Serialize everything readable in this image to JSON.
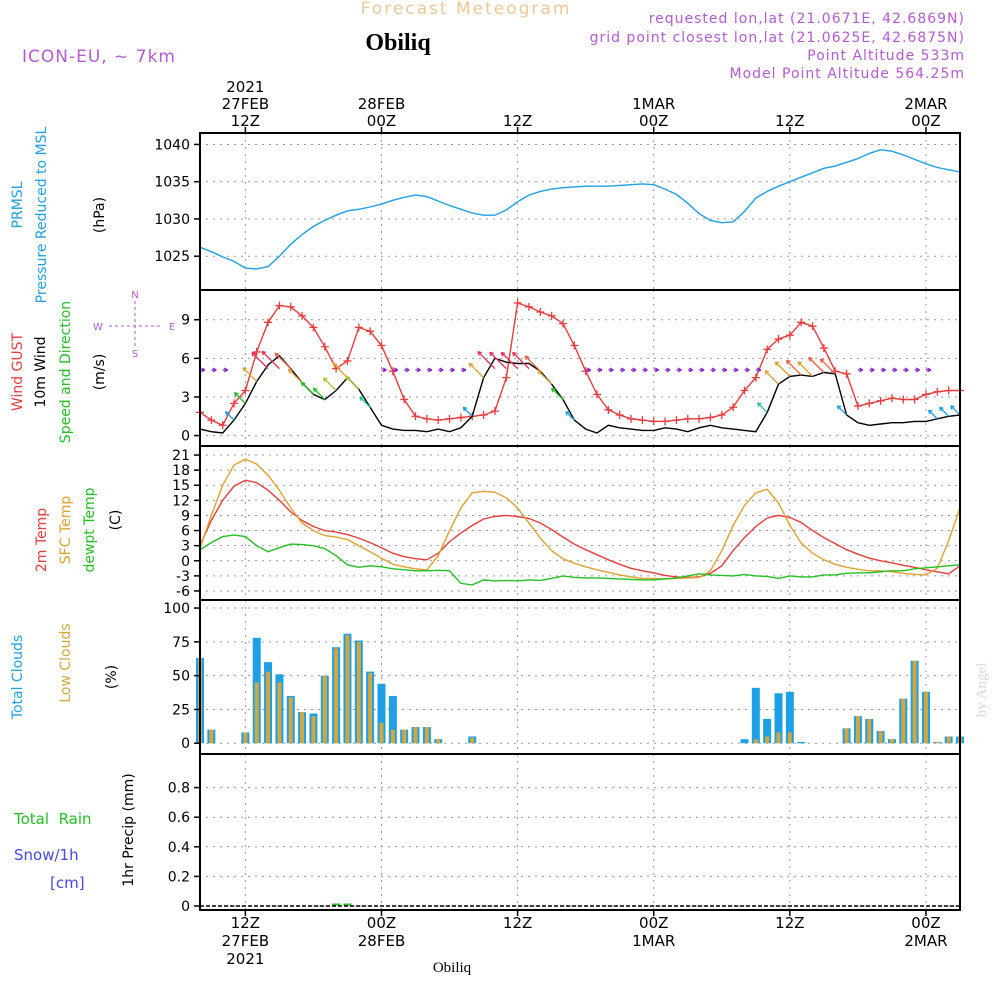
{
  "header": {
    "product_title": "Forecast Meteogram",
    "location": "Obiliq",
    "model": "ICON-EU, ~ 7km",
    "requested": "requested lon,lat (21.0671E, 42.6869N)",
    "grid_point": "grid point closest lon,lat (21.0625E, 42.6875N)",
    "point_altitude": "Point Altitude 533m",
    "model_altitude": "Model Point Altitude 564.25m",
    "footer_location": "Obiliq",
    "credit": "by Angel"
  },
  "colors": {
    "pressure": "#1ea0e6",
    "gust": "#e83c3c",
    "wind": "#000000",
    "temp2m": "#e83c3c",
    "sfc": "#e0a030",
    "dew": "#22c022",
    "total_clouds": "#1ea0e6",
    "low_clouds": "#d4a73c",
    "purple": "#b45ad2",
    "rain": "#22c022",
    "snow": "#4646e6",
    "title": "#f0c896"
  },
  "time_axis": {
    "hour_range": [
      0,
      67
    ],
    "major_ticks": [
      {
        "hour": 4,
        "label": "12Z",
        "date": "27FEB",
        "year": "2021"
      },
      {
        "hour": 16,
        "label": "00Z",
        "date": "28FEB",
        "year": ""
      },
      {
        "hour": 28,
        "label": "12Z",
        "date": "",
        "year": ""
      },
      {
        "hour": 40,
        "label": "00Z",
        "date": "1MAR",
        "year": ""
      },
      {
        "hour": 52,
        "label": "12Z",
        "date": "",
        "year": ""
      },
      {
        "hour": 64,
        "label": "00Z",
        "date": "2MAR",
        "year": ""
      }
    ]
  },
  "chart_data": [
    {
      "type": "line",
      "name": "pressure",
      "ylabel_lines": [
        "PRMSL",
        "Pressure Reduced to MSL"
      ],
      "units": "(hPa)",
      "ylim": [
        1021,
        1041
      ],
      "yticks": [
        1025,
        1030,
        1035,
        1040
      ],
      "series": [
        {
          "name": "PRMSL",
          "color_key": "pressure",
          "x": [
            0,
            1,
            2,
            3,
            4,
            5,
            6,
            7,
            8,
            9,
            10,
            11,
            12,
            13,
            14,
            15,
            16,
            17,
            18,
            19,
            20,
            21,
            22,
            23,
            24,
            25,
            26,
            27,
            28,
            29,
            30,
            31,
            32,
            33,
            34,
            35,
            36,
            37,
            38,
            39,
            40,
            41,
            42,
            43,
            44,
            45,
            46,
            47,
            48,
            49,
            50,
            51,
            52,
            53,
            54,
            55,
            56,
            57,
            58,
            59,
            60,
            61,
            62,
            63,
            64,
            65,
            66,
            67
          ],
          "values": [
            1026.2,
            1025.6,
            1024.9,
            1024.3,
            1023.4,
            1023.3,
            1023.6,
            1025.0,
            1026.6,
            1027.9,
            1029.0,
            1029.8,
            1030.5,
            1031.1,
            1031.3,
            1031.6,
            1032.0,
            1032.5,
            1032.9,
            1033.2,
            1033.0,
            1032.4,
            1031.8,
            1031.3,
            1030.8,
            1030.5,
            1030.5,
            1031.2,
            1032.3,
            1033.2,
            1033.7,
            1034.0,
            1034.2,
            1034.3,
            1034.4,
            1034.4,
            1034.4,
            1034.5,
            1034.6,
            1034.7,
            1034.6,
            1034.0,
            1033.3,
            1032.1,
            1030.7,
            1029.8,
            1029.5,
            1029.6,
            1031.0,
            1032.8,
            1033.7,
            1034.4,
            1035.0,
            1035.6,
            1036.2,
            1036.8,
            1037.1,
            1037.6,
            1038.1,
            1038.8,
            1039.3,
            1039.1,
            1038.6,
            1038.0,
            1037.4,
            1036.9,
            1036.6,
            1036.3
          ]
        }
      ]
    },
    {
      "type": "line",
      "name": "wind",
      "ylabel_lines": [
        "Wind GUST",
        "10m Wind",
        "Speed and Direction"
      ],
      "units": "(m/s)",
      "compass": {
        "n": "N",
        "s": "S",
        "e": "E",
        "w": "W"
      },
      "ylim": [
        -0.5,
        11
      ],
      "yticks": [
        0,
        3,
        6,
        9
      ],
      "x": [
        0,
        1,
        2,
        3,
        4,
        5,
        6,
        7,
        8,
        9,
        10,
        11,
        12,
        13,
        14,
        15,
        16,
        17,
        18,
        19,
        20,
        21,
        22,
        23,
        24,
        25,
        26,
        27,
        28,
        29,
        30,
        31,
        32,
        33,
        34,
        35,
        36,
        37,
        38,
        39,
        40,
        41,
        42,
        43,
        44,
        45,
        46,
        47,
        48,
        49,
        50,
        51,
        52,
        53,
        54,
        55,
        56,
        57,
        58,
        59,
        60,
        61,
        62,
        63,
        64,
        65,
        66,
        67
      ],
      "series": [
        {
          "name": "Wind GUST",
          "color_key": "gust",
          "values": [
            1.8,
            1.2,
            0.8,
            2.5,
            3.5,
            6.5,
            8.8,
            10.1,
            10.0,
            9.3,
            8.4,
            6.9,
            5.2,
            5.8,
            8.4,
            8.1,
            7.0,
            5.0,
            2.8,
            1.5,
            1.3,
            1.2,
            1.3,
            1.4,
            1.5,
            1.6,
            1.9,
            4.5,
            10.3,
            10.0,
            9.6,
            9.3,
            8.7,
            7.0,
            5.0,
            3.2,
            2.0,
            1.6,
            1.3,
            1.2,
            1.1,
            1.1,
            1.2,
            1.3,
            1.3,
            1.4,
            1.6,
            2.2,
            3.5,
            4.5,
            6.7,
            7.5,
            7.8,
            8.8,
            8.5,
            6.8,
            5.0,
            4.8,
            2.3,
            2.5,
            2.7,
            2.9,
            2.8,
            2.8,
            3.2,
            3.4,
            3.5,
            3.5
          ]
        },
        {
          "name": "10m Wind",
          "color_key": "wind",
          "values": [
            0.5,
            0.3,
            0.2,
            1.2,
            2.5,
            4.2,
            5.5,
            6.2,
            5.2,
            4.1,
            3.2,
            2.8,
            3.5,
            4.5,
            3.6,
            2.2,
            0.8,
            0.5,
            0.4,
            0.4,
            0.3,
            0.5,
            0.3,
            0.6,
            1.5,
            4.5,
            6.0,
            5.7,
            5.6,
            5.6,
            5.0,
            4.0,
            2.8,
            1.2,
            0.5,
            0.2,
            0.8,
            0.6,
            0.5,
            0.4,
            0.4,
            0.6,
            0.5,
            0.3,
            0.6,
            0.8,
            0.6,
            0.5,
            0.4,
            0.3,
            1.8,
            4.0,
            4.6,
            4.7,
            4.6,
            4.9,
            4.8,
            1.6,
            1.0,
            0.8,
            0.9,
            1.0,
            1.0,
            1.1,
            1.1,
            1.3,
            1.5,
            1.6
          ]
        }
      ]
    },
    {
      "type": "line",
      "name": "temperature",
      "ylabel_lines": [
        "2m Temp",
        "SFC Temp",
        "dewpt Temp"
      ],
      "units": "(C)",
      "ylim": [
        -7,
        22
      ],
      "yticks": [
        -6,
        -3,
        0,
        3,
        6,
        9,
        12,
        15,
        18,
        21
      ],
      "x": [
        0,
        1,
        2,
        3,
        4,
        5,
        6,
        7,
        8,
        9,
        10,
        11,
        12,
        13,
        14,
        15,
        16,
        17,
        18,
        19,
        20,
        21,
        22,
        23,
        24,
        25,
        26,
        27,
        28,
        29,
        30,
        31,
        32,
        33,
        34,
        35,
        36,
        37,
        38,
        39,
        40,
        41,
        42,
        43,
        44,
        45,
        46,
        47,
        48,
        49,
        50,
        51,
        52,
        53,
        54,
        55,
        56,
        57,
        58,
        59,
        60,
        61,
        62,
        63,
        64,
        65,
        66,
        67
      ],
      "series": [
        {
          "name": "2m Temp",
          "color_key": "temp2m",
          "values": [
            3.0,
            8.0,
            12.0,
            14.8,
            16.0,
            15.5,
            14.0,
            12.0,
            9.7,
            8.0,
            6.8,
            6.0,
            5.7,
            5.2,
            4.5,
            3.6,
            2.6,
            1.5,
            0.8,
            0.4,
            0.2,
            1.5,
            3.8,
            5.5,
            7.0,
            8.3,
            8.8,
            9.0,
            8.8,
            8.4,
            7.5,
            6.2,
            4.7,
            3.3,
            2.2,
            1.2,
            0.2,
            -0.7,
            -1.5,
            -2.0,
            -2.4,
            -2.9,
            -3.2,
            -3.3,
            -3.2,
            -2.5,
            -1.0,
            2.0,
            4.6,
            6.8,
            8.5,
            9.0,
            8.6,
            7.6,
            6.0,
            4.6,
            3.4,
            2.2,
            1.3,
            0.5,
            0.0,
            -0.4,
            -0.9,
            -1.3,
            -1.8,
            -2.2,
            -2.6,
            -1.0
          ]
        },
        {
          "name": "SFC Temp",
          "color_key": "sfc",
          "values": [
            2.5,
            9.0,
            15.0,
            19.0,
            20.2,
            19.2,
            17.0,
            14.0,
            10.5,
            7.5,
            6.0,
            5.0,
            4.7,
            4.2,
            3.0,
            1.8,
            0.5,
            -0.7,
            -1.2,
            -1.6,
            -1.8,
            1.0,
            6.0,
            10.5,
            13.5,
            13.8,
            13.6,
            12.5,
            10.5,
            7.5,
            4.5,
            2.0,
            0.4,
            -0.5,
            -1.2,
            -1.8,
            -2.3,
            -2.8,
            -3.2,
            -3.5,
            -3.5,
            -3.6,
            -3.5,
            -3.4,
            -3.3,
            -2.0,
            2.0,
            7.0,
            11.0,
            13.5,
            14.2,
            11.5,
            7.0,
            3.5,
            1.5,
            0.2,
            -0.7,
            -1.3,
            -1.7,
            -2.0,
            -2.0,
            -2.2,
            -2.5,
            -2.7,
            -2.8,
            -1.5,
            4.0,
            10.5
          ]
        },
        {
          "name": "dewpt Temp",
          "color_key": "dew",
          "values": [
            2.2,
            3.6,
            4.8,
            5.1,
            4.8,
            3.0,
            1.8,
            2.6,
            3.3,
            3.2,
            3.0,
            2.4,
            1.0,
            -0.8,
            -1.3,
            -1.0,
            -1.2,
            -1.6,
            -1.8,
            -2.0,
            -2.0,
            -1.9,
            -2.0,
            -4.5,
            -4.8,
            -3.8,
            -4.0,
            -3.9,
            -4.0,
            -3.8,
            -3.9,
            -3.5,
            -3.0,
            -3.3,
            -3.4,
            -3.4,
            -3.5,
            -3.6,
            -3.7,
            -3.8,
            -3.8,
            -3.6,
            -3.4,
            -3.0,
            -2.6,
            -2.8,
            -2.9,
            -3.0,
            -2.7,
            -3.0,
            -3.1,
            -3.5,
            -3.0,
            -3.2,
            -3.2,
            -2.8,
            -2.8,
            -2.5,
            -2.4,
            -2.4,
            -2.2,
            -2.0,
            -2.0,
            -1.6,
            -1.4,
            -1.2,
            -1.0,
            -0.8
          ]
        }
      ]
    },
    {
      "type": "bar",
      "name": "clouds",
      "ylabel_lines": [
        "Total Clouds",
        "Low Clouds"
      ],
      "units": "(%)",
      "ylim": [
        -5,
        103
      ],
      "yticks": [
        0,
        25,
        50,
        75,
        100
      ],
      "x": [
        0,
        1,
        2,
        3,
        4,
        5,
        6,
        7,
        8,
        9,
        10,
        11,
        12,
        13,
        14,
        15,
        16,
        17,
        18,
        19,
        20,
        21,
        22,
        23,
        24,
        25,
        26,
        27,
        28,
        29,
        30,
        31,
        32,
        33,
        34,
        35,
        36,
        37,
        38,
        39,
        40,
        41,
        42,
        43,
        44,
        45,
        46,
        47,
        48,
        49,
        50,
        51,
        52,
        53,
        54,
        55,
        56,
        57,
        58,
        59,
        60,
        61,
        62,
        63,
        64,
        65,
        66,
        67
      ],
      "series": [
        {
          "name": "Total Clouds",
          "color_key": "total_clouds",
          "values": [
            63,
            10,
            0,
            0,
            8,
            78,
            60,
            51,
            35,
            23,
            22,
            50,
            71,
            81,
            76,
            53,
            44,
            35,
            10,
            12,
            12,
            3,
            0,
            0,
            5,
            0,
            0,
            0,
            0,
            0,
            0,
            0,
            0,
            0,
            0,
            0,
            0,
            0,
            0,
            0,
            0,
            0,
            0,
            0,
            0,
            0,
            0,
            0,
            3,
            41,
            18,
            37,
            38,
            1,
            0,
            0,
            0,
            11,
            20,
            18,
            9,
            3,
            33,
            61,
            38,
            1,
            5,
            5
          ]
        },
        {
          "name": "Low Clouds",
          "color_key": "low_clouds",
          "values": [
            63,
            10,
            0,
            0,
            8,
            45,
            53,
            45,
            34,
            23,
            20,
            50,
            70,
            80,
            75,
            52,
            15,
            10,
            10,
            12,
            12,
            3,
            0,
            0,
            4,
            0,
            0,
            0,
            0,
            0,
            0,
            0,
            0,
            0,
            0,
            0,
            0,
            0,
            0,
            0,
            0,
            0,
            0,
            0,
            0,
            0,
            0,
            0,
            0,
            3,
            5,
            8,
            8,
            0,
            0,
            0,
            0,
            11,
            20,
            18,
            9,
            3,
            33,
            61,
            38,
            1,
            5,
            5
          ]
        }
      ]
    },
    {
      "type": "bar",
      "name": "precipitation",
      "ylabel_lines": [
        "1hr Precip (mm)"
      ],
      "legend_lines": [
        "Total  Rain",
        "Snow/1h",
        "[cm]"
      ],
      "ylim": [
        0,
        1.0
      ],
      "yticks": [
        0,
        0.2,
        0.4,
        0.6,
        0.8
      ],
      "tick_labels": [
        "0",
        "0.2",
        "0.4",
        "0.6",
        "0.8"
      ],
      "series": [
        {
          "name": "Total Rain",
          "color_key": "rain",
          "x": [
            12,
            13
          ],
          "values": [
            0.01,
            0.01
          ]
        },
        {
          "name": "Snow/1h",
          "color_key": "snow",
          "values": []
        }
      ]
    }
  ]
}
